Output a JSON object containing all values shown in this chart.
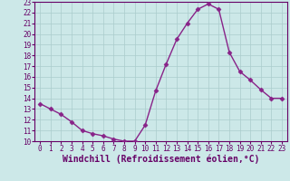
{
  "x": [
    0,
    1,
    2,
    3,
    4,
    5,
    6,
    7,
    8,
    9,
    10,
    11,
    12,
    13,
    14,
    15,
    16,
    17,
    18,
    19,
    20,
    21,
    22,
    23
  ],
  "y": [
    13.5,
    13.0,
    12.5,
    11.8,
    11.0,
    10.7,
    10.5,
    10.2,
    10.0,
    10.0,
    11.5,
    14.7,
    17.2,
    19.5,
    21.0,
    22.3,
    22.8,
    22.3,
    18.3,
    16.5,
    15.7,
    14.8,
    14.0,
    14.0
  ],
  "line_color": "#882288",
  "marker": "D",
  "markersize": 2.5,
  "linewidth": 1.0,
  "bg_color": "#cce8e8",
  "grid_color": "#aacccc",
  "xlabel": "Windchill (Refroidissement éolien,°C)",
  "ylim": [
    10,
    23
  ],
  "xlim": [
    -0.5,
    23.5
  ],
  "yticks": [
    10,
    11,
    12,
    13,
    14,
    15,
    16,
    17,
    18,
    19,
    20,
    21,
    22,
    23
  ],
  "xticks": [
    0,
    1,
    2,
    3,
    4,
    5,
    6,
    7,
    8,
    9,
    10,
    11,
    12,
    13,
    14,
    15,
    16,
    17,
    18,
    19,
    20,
    21,
    22,
    23
  ],
  "tick_fontsize": 5.5,
  "xlabel_fontsize": 7.0,
  "axis_color": "#660066",
  "tick_color": "#660066"
}
